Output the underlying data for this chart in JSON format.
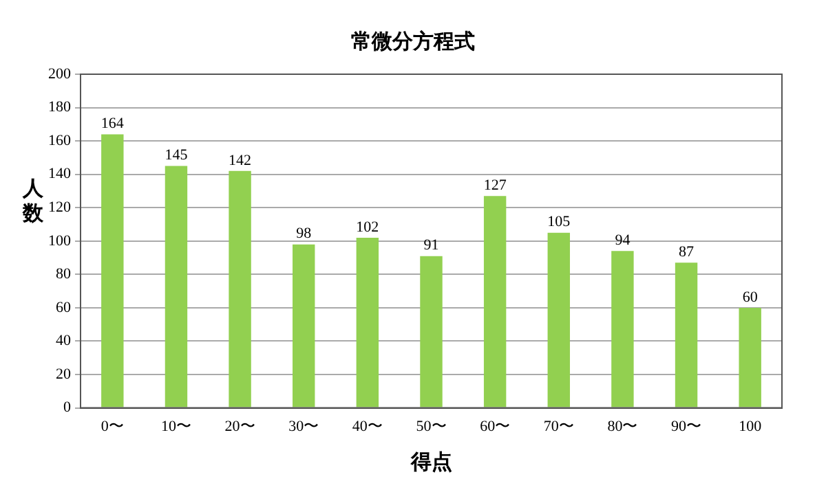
{
  "chart_data": {
    "type": "bar",
    "title": "常微分方程式",
    "xlabel": "得点",
    "ylabel": "人数",
    "categories": [
      "0〜",
      "10〜",
      "20〜",
      "30〜",
      "40〜",
      "50〜",
      "60〜",
      "70〜",
      "80〜",
      "90〜",
      "100"
    ],
    "values": [
      164,
      145,
      142,
      98,
      102,
      91,
      127,
      105,
      94,
      87,
      60
    ],
    "color": "#92d050",
    "ylim": [
      0,
      200
    ],
    "yticks": [
      0,
      20,
      40,
      60,
      80,
      100,
      120,
      140,
      160,
      180,
      200
    ],
    "grid": "y",
    "data_labels": true,
    "legend": false
  }
}
